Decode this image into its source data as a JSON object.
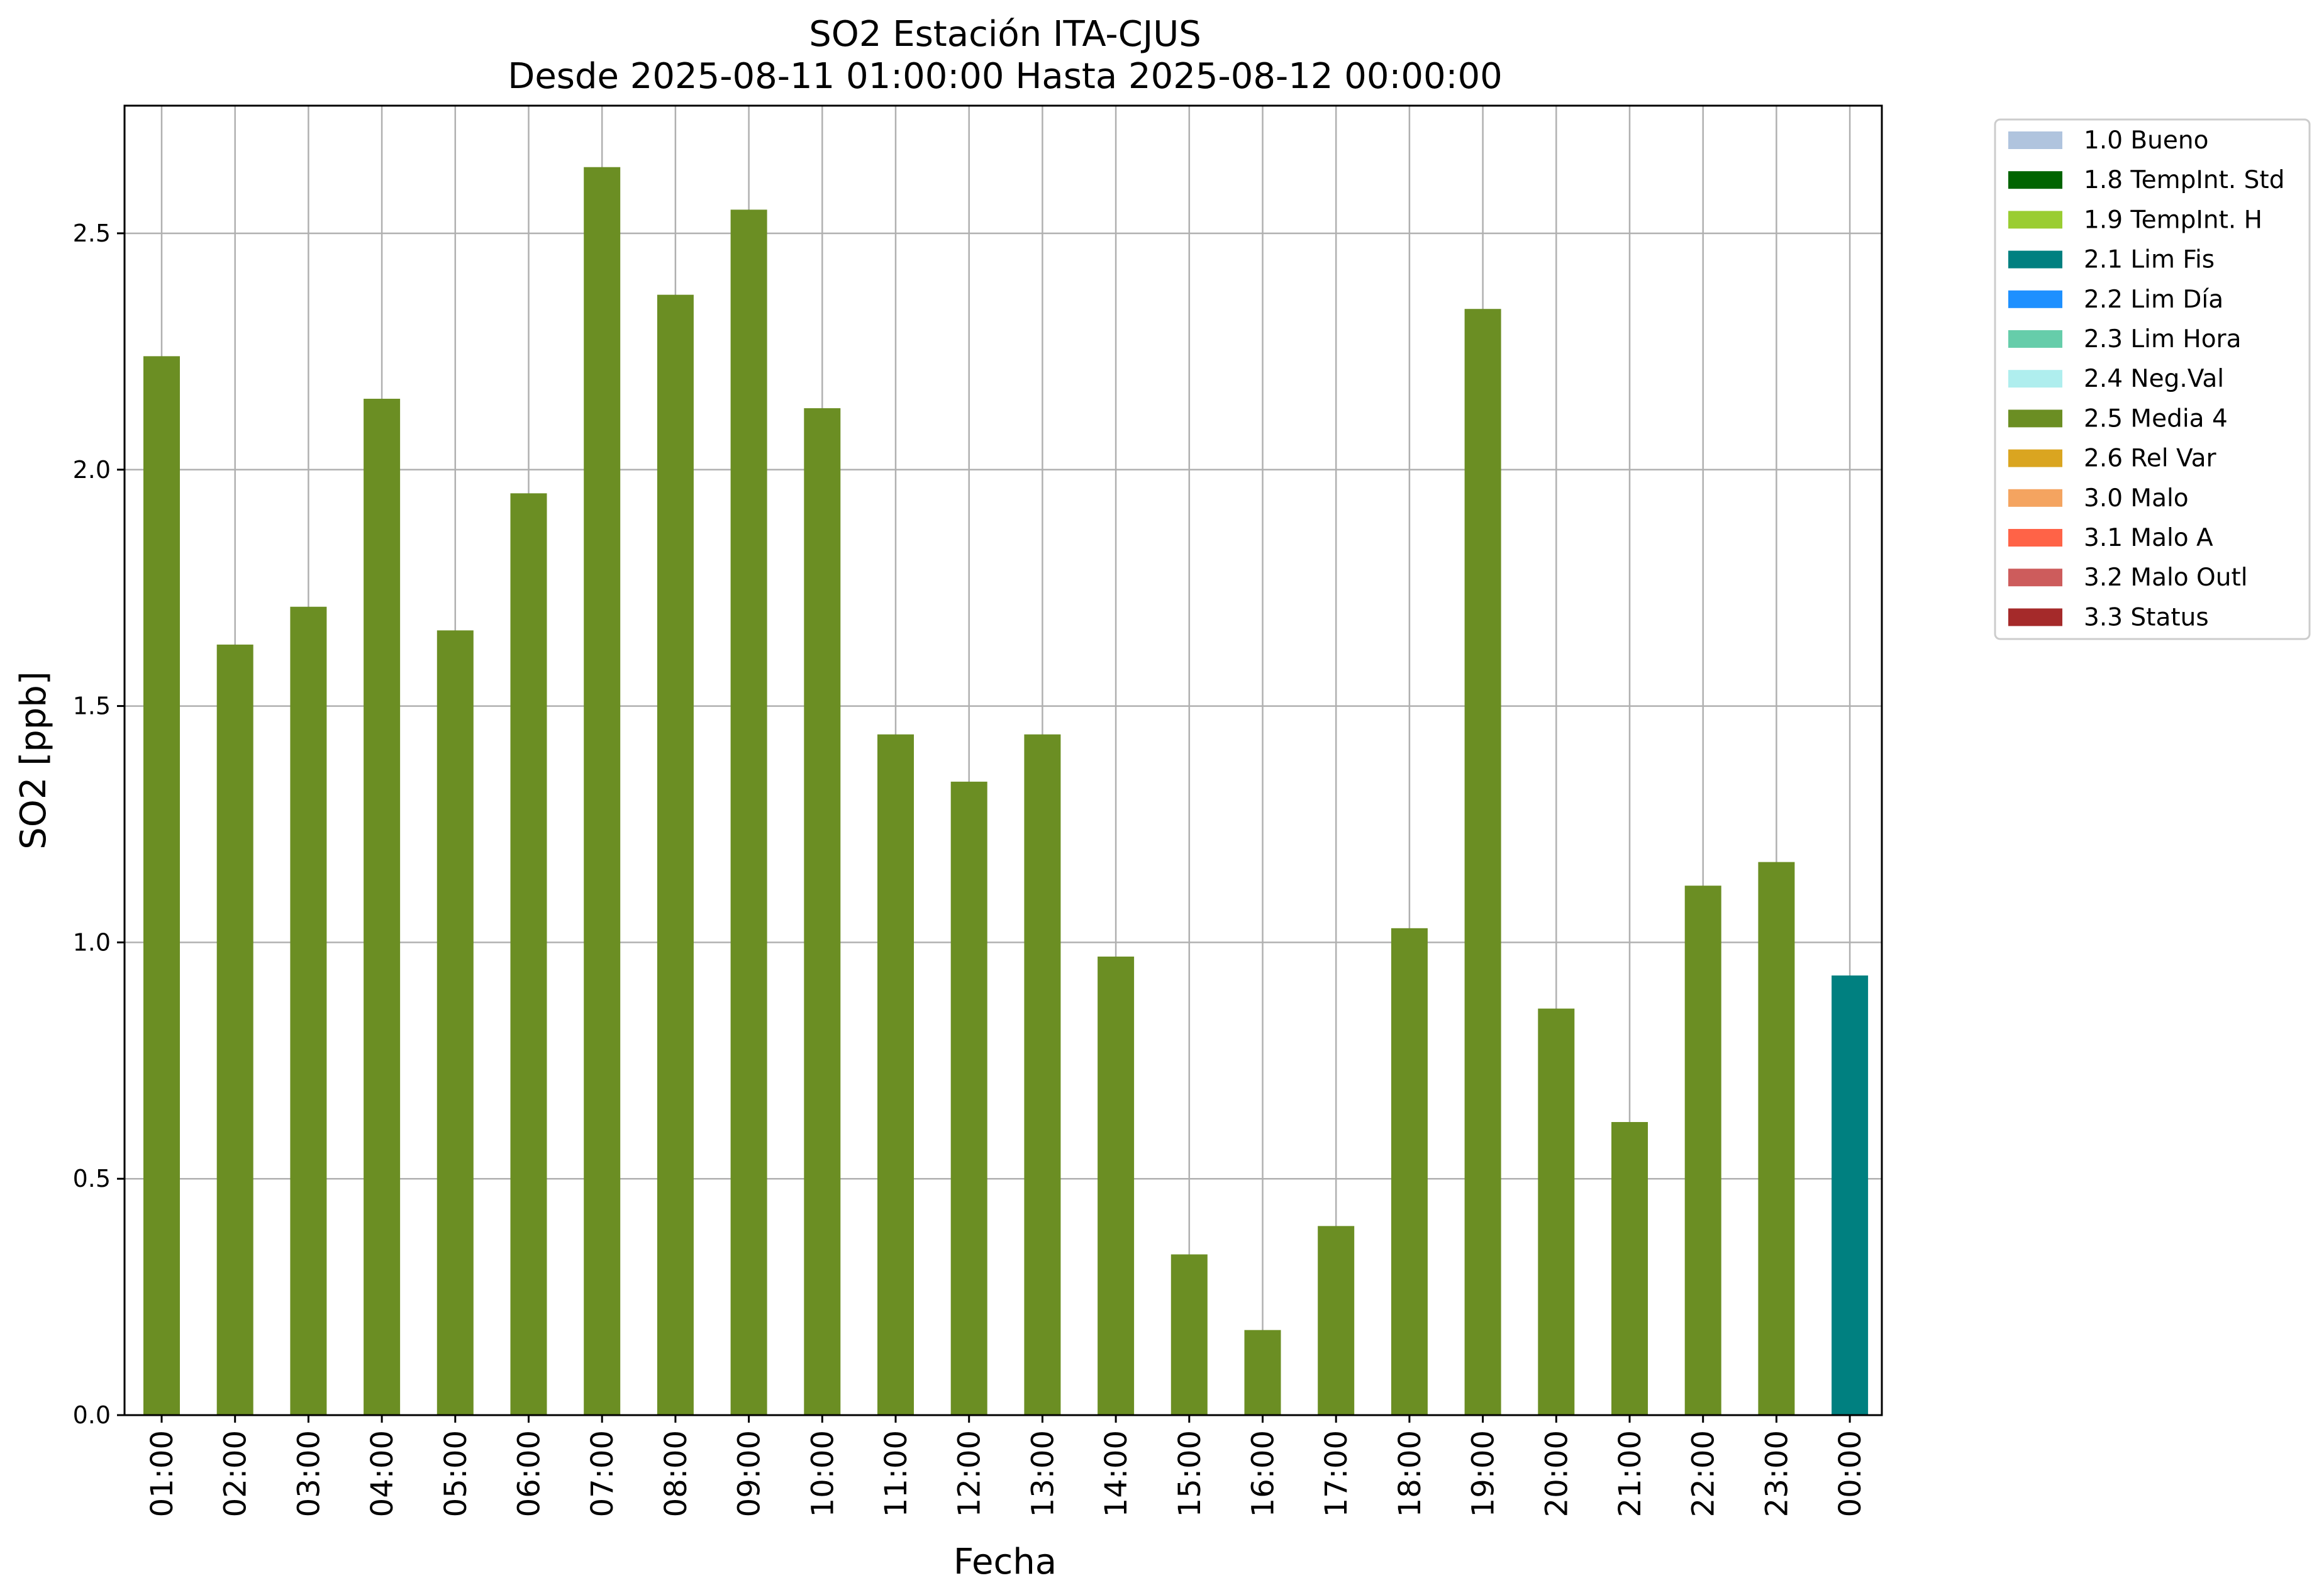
{
  "chart_data": {
    "type": "bar",
    "title_line1": "SO2 Estación ITA-CJUS",
    "title_line2": "Desde 2025-08-11 01:00:00 Hasta 2025-08-12 00:00:00",
    "xlabel": "Fecha",
    "ylabel": "SO2 [ppb]",
    "ylim": [
      0,
      2.77
    ],
    "yticks": [
      "0.0",
      "0.5",
      "1.0",
      "1.5",
      "2.0",
      "2.5"
    ],
    "grid": true,
    "legend_position": "outside-top-right",
    "categories": [
      "01:00",
      "02:00",
      "03:00",
      "04:00",
      "05:00",
      "06:00",
      "07:00",
      "08:00",
      "09:00",
      "10:00",
      "11:00",
      "12:00",
      "13:00",
      "14:00",
      "15:00",
      "16:00",
      "17:00",
      "18:00",
      "19:00",
      "20:00",
      "21:00",
      "22:00",
      "23:00",
      "00:00"
    ],
    "values": [
      2.24,
      1.63,
      1.71,
      2.15,
      1.66,
      1.95,
      2.64,
      2.37,
      2.55,
      2.13,
      1.44,
      1.34,
      1.44,
      0.97,
      0.34,
      0.18,
      0.4,
      1.03,
      2.34,
      0.86,
      0.62,
      1.12,
      1.17,
      0.93
    ],
    "flags": [
      "2.5 Media 4",
      "2.5 Media 4",
      "2.5 Media 4",
      "2.5 Media 4",
      "2.5 Media 4",
      "2.5 Media 4",
      "2.5 Media 4",
      "2.5 Media 4",
      "2.5 Media 4",
      "2.5 Media 4",
      "2.5 Media 4",
      "2.5 Media 4",
      "2.5 Media 4",
      "2.5 Media 4",
      "2.5 Media 4",
      "2.5 Media 4",
      "2.5 Media 4",
      "2.5 Media 4",
      "2.5 Media 4",
      "2.5 Media 4",
      "2.5 Media 4",
      "2.5 Media 4",
      "2.5 Media 4",
      "2.1 Lim Fis"
    ],
    "legend": [
      {
        "label": "1.0 Bueno",
        "color": "#b0c4de"
      },
      {
        "label": "1.8 TempInt. Std",
        "color": "#006400"
      },
      {
        "label": "1.9 TempInt. H",
        "color": "#9acd32"
      },
      {
        "label": "2.1 Lim Fis",
        "color": "#008080"
      },
      {
        "label": "2.2 Lim Día",
        "color": "#1e90ff"
      },
      {
        "label": "2.3 Lim Hora",
        "color": "#66cdaa"
      },
      {
        "label": "2.4 Neg.Val",
        "color": "#afeeee"
      },
      {
        "label": "2.5 Media 4",
        "color": "#6b8e23"
      },
      {
        "label": "2.6 Rel Var",
        "color": "#daa520"
      },
      {
        "label": "3.0 Malo",
        "color": "#f4a460"
      },
      {
        "label": "3.1 Malo A",
        "color": "#ff6347"
      },
      {
        "label": "3.2 Malo Outl",
        "color": "#cd5c5c"
      },
      {
        "label": "3.3 Status",
        "color": "#a52a2a"
      }
    ]
  }
}
